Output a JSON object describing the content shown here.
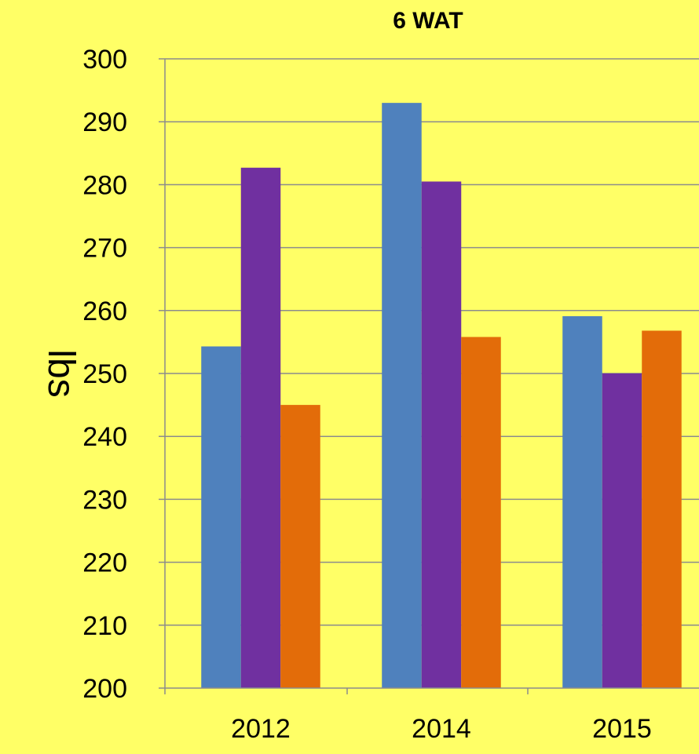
{
  "chart_data": {
    "type": "bar",
    "title": "6 WAT",
    "xlabel": "",
    "ylabel": "lbs",
    "categories": [
      "2012",
      "2014",
      "2015"
    ],
    "series": [
      {
        "color": "#4F81BD",
        "values": [
          254.3,
          293.0,
          259.1
        ]
      },
      {
        "color": "#7030A0",
        "values": [
          282.7,
          280.5,
          250.0
        ]
      },
      {
        "color": "#E36C09",
        "values": [
          245.0,
          255.8,
          256.8
        ]
      }
    ],
    "ylim": [
      200,
      300
    ],
    "yticks": [
      200,
      210,
      220,
      230,
      240,
      250,
      260,
      270,
      280,
      290,
      300
    ],
    "grid": true,
    "legend": "none",
    "background": "#FFFF66"
  }
}
